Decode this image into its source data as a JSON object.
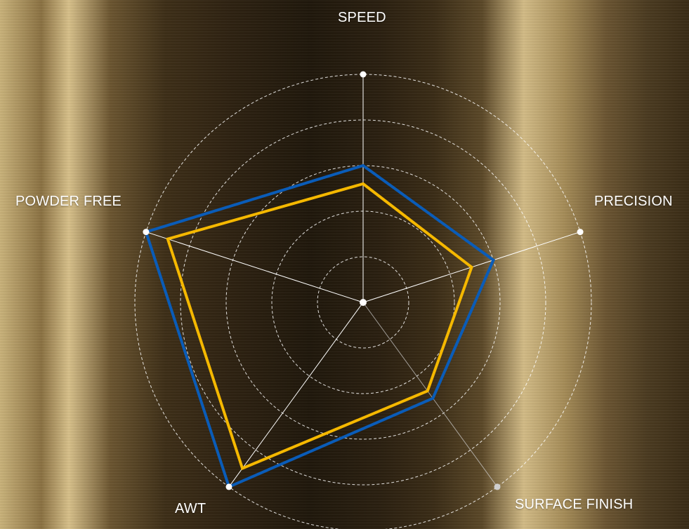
{
  "chart_data": {
    "type": "radar",
    "axes": [
      "SPEED",
      "PRECISION",
      "SURFACE FINISH",
      "AWT",
      "POWDER FREE"
    ],
    "max": 5,
    "grid_levels": 5,
    "series": [
      {
        "values": [
          3.0,
          3.0,
          2.6,
          5.0,
          5.0
        ],
        "color": "#0a5cb8"
      },
      {
        "values": [
          2.6,
          2.5,
          2.4,
          4.5,
          4.5
        ],
        "color": "#f5b800"
      }
    ],
    "grid": "dashed concentric circles",
    "axis_color": "#ffffff"
  }
}
